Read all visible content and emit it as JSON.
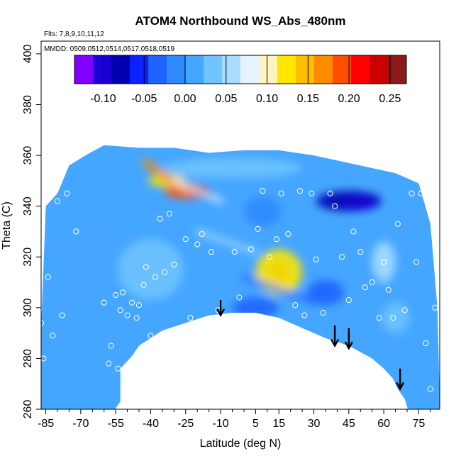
{
  "chart_data": {
    "type": "heatmap",
    "title": "ATOM4 Northbound WS_Abs_480nm",
    "flights_note": "Flts: 7,8,9,10,11,12",
    "mmdd_note": "MMDD: 0509,0512,0514,0517,0518,0519",
    "xlabel": "Latitude (deg N)",
    "ylabel": "Theta (C)",
    "xlim": [
      -87,
      84
    ],
    "ylim": [
      260,
      405
    ],
    "x_ticks": [
      -85,
      -70,
      -55,
      -40,
      -25,
      -10,
      5,
      15,
      30,
      45,
      60,
      75
    ],
    "y_ticks": [
      260,
      280,
      300,
      320,
      340,
      360,
      380,
      400
    ],
    "colorbar": {
      "range": [
        -0.135,
        0.27
      ],
      "ticks": [
        -0.1,
        -0.05,
        0.0,
        0.05,
        0.1,
        0.15,
        0.2,
        0.25
      ],
      "tick_labels": [
        "-0.10",
        "-0.05",
        "0.00",
        "0.05",
        "0.10",
        "0.15",
        "0.20",
        "0.25"
      ],
      "colors": [
        "#7f00ff",
        "#1a00d4",
        "#0000b0",
        "#0a22ff",
        "#1e63ff",
        "#2f8aff",
        "#45a6ff",
        "#6fc3ff",
        "#a8dcff",
        "#e6f4ff",
        "#fff3c0",
        "#ffe600",
        "#ffbf00",
        "#ff8c00",
        "#ff4d00",
        "#ff0000",
        "#cc0000",
        "#8b1a1a"
      ]
    },
    "background_value": 0.005,
    "data_envelope": [
      [
        -87,
        260
      ],
      [
        -87,
        292
      ],
      [
        -85,
        340
      ],
      [
        -80,
        345
      ],
      [
        -75,
        356
      ],
      [
        -68,
        360
      ],
      [
        -60,
        364
      ],
      [
        -45,
        363
      ],
      [
        -30,
        363
      ],
      [
        -15,
        361
      ],
      [
        0,
        362
      ],
      [
        15,
        362
      ],
      [
        30,
        360
      ],
      [
        50,
        356
      ],
      [
        65,
        353
      ],
      [
        75,
        349
      ],
      [
        80,
        333
      ],
      [
        83,
        300
      ],
      [
        84,
        265
      ],
      [
        84,
        260
      ]
    ],
    "ground": [
      [
        -57,
        258
      ],
      [
        -53,
        263
      ],
      [
        -53,
        276
      ],
      [
        -48,
        281
      ],
      [
        -45,
        285
      ],
      [
        -40,
        288
      ],
      [
        -35,
        291
      ],
      [
        -25,
        294
      ],
      [
        -15,
        297
      ],
      [
        -5,
        298
      ],
      [
        5,
        298
      ],
      [
        15,
        296
      ],
      [
        25,
        292
      ],
      [
        35,
        288
      ],
      [
        45,
        285
      ],
      [
        55,
        280
      ],
      [
        60,
        276
      ],
      [
        64,
        272
      ],
      [
        66,
        268
      ],
      [
        69,
        264
      ],
      [
        71,
        258
      ]
    ],
    "anomalies": [
      {
        "lat": -25,
        "theta": 346,
        "value": 0.2,
        "rx": 9,
        "ry": 3
      },
      {
        "lat": -18,
        "theta": 345.5,
        "value": 0.23,
        "rx": 4,
        "ry": 1.8
      },
      {
        "lat": -33,
        "theta": 350,
        "value": 0.12,
        "rx": 8,
        "ry": 2.5
      },
      {
        "lat": 15,
        "theta": 314,
        "value": 0.26,
        "rx": 4,
        "ry": 4
      },
      {
        "lat": 15,
        "theta": 314,
        "value": 0.12,
        "rx": 10,
        "ry": 9
      },
      {
        "lat": 45,
        "theta": 342,
        "value": -0.07,
        "rx": 14,
        "ry": 4
      },
      {
        "lat": 50,
        "theta": 341,
        "value": -0.1,
        "rx": 7,
        "ry": 2.5
      },
      {
        "lat": 8,
        "theta": 338,
        "value": -0.02,
        "rx": 8,
        "ry": 6
      },
      {
        "lat": 5,
        "theta": 300,
        "value": -0.04,
        "rx": 10,
        "ry": 4
      },
      {
        "lat": -40,
        "theta": 315,
        "value": 0.04,
        "rx": 14,
        "ry": 12
      },
      {
        "lat": -70,
        "theta": 318,
        "value": 0.02,
        "rx": 10,
        "ry": 16
      },
      {
        "lat": 60,
        "theta": 318,
        "value": 0.05,
        "rx": 5,
        "ry": 8
      },
      {
        "lat": 35,
        "theta": 306,
        "value": -0.03,
        "rx": 8,
        "ry": 5
      },
      {
        "lat": 65,
        "theta": 296,
        "value": 0.03,
        "rx": 6,
        "ry": 6
      },
      {
        "lat": -5,
        "theta": 355,
        "value": 0.03,
        "rx": 30,
        "ry": 4
      },
      {
        "lat": 25,
        "theta": 282,
        "value": 0.04,
        "rx": 10,
        "ry": 4
      }
    ],
    "streaks": [
      {
        "from": [
          -42,
          357
        ],
        "to": [
          -25,
          346
        ],
        "value": 0.18,
        "width": 3
      },
      {
        "from": [
          -30,
          350
        ],
        "to": [
          -10,
          342
        ],
        "value": 0.08,
        "width": 2
      },
      {
        "from": [
          -20,
          330
        ],
        "to": [
          5,
          322
        ],
        "value": 0.05,
        "width": 2
      },
      {
        "from": [
          0,
          312
        ],
        "to": [
          30,
          302
        ],
        "value": -0.03,
        "width": 2
      }
    ],
    "samples": [
      [
        -87,
        294
      ],
      [
        -86,
        280
      ],
      [
        -84,
        312
      ],
      [
        -82,
        289
      ],
      [
        -80,
        342
      ],
      [
        -78,
        297
      ],
      [
        -76,
        345
      ],
      [
        -72,
        330
      ],
      [
        -60,
        302
      ],
      [
        -58,
        278
      ],
      [
        -57,
        285
      ],
      [
        -55,
        305
      ],
      [
        -54,
        276
      ],
      [
        -53,
        299
      ],
      [
        -52,
        306
      ],
      [
        -50,
        297
      ],
      [
        -48,
        302
      ],
      [
        -46,
        296
      ],
      [
        -45,
        301
      ],
      [
        -43,
        309
      ],
      [
        -42,
        316
      ],
      [
        -40,
        289
      ],
      [
        -38,
        312
      ],
      [
        -36,
        335
      ],
      [
        -34,
        314
      ],
      [
        -32,
        337
      ],
      [
        -30,
        317
      ],
      [
        -28,
        292
      ],
      [
        -25,
        327
      ],
      [
        -23,
        296
      ],
      [
        -20,
        325
      ],
      [
        -18,
        329
      ],
      [
        -14,
        322
      ],
      [
        -11,
        299
      ],
      [
        -8,
        289
      ],
      [
        -4,
        322
      ],
      [
        -2,
        304
      ],
      [
        3,
        323
      ],
      [
        6,
        331
      ],
      [
        8,
        346
      ],
      [
        11,
        320
      ],
      [
        14,
        327
      ],
      [
        16,
        345
      ],
      [
        19,
        329
      ],
      [
        22,
        301
      ],
      [
        24,
        346
      ],
      [
        26,
        297
      ],
      [
        29,
        345
      ],
      [
        31,
        319
      ],
      [
        34,
        298
      ],
      [
        37,
        345
      ],
      [
        39,
        340
      ],
      [
        42,
        320
      ],
      [
        45,
        303
      ],
      [
        47,
        330
      ],
      [
        50,
        322
      ],
      [
        52,
        308
      ],
      [
        55,
        310
      ],
      [
        58,
        296
      ],
      [
        60,
        318
      ],
      [
        62,
        307
      ],
      [
        64,
        296
      ],
      [
        66,
        333
      ],
      [
        69,
        299
      ],
      [
        72,
        345
      ],
      [
        74,
        318
      ],
      [
        76,
        345
      ],
      [
        78,
        286
      ],
      [
        80,
        268
      ],
      [
        82,
        300
      ]
    ],
    "arrows": [
      {
        "lat": -10,
        "theta_top": 303,
        "theta_tip": 297
      },
      {
        "lat": 39,
        "theta_top": 293,
        "theta_tip": 285
      },
      {
        "lat": 45,
        "theta_top": 292,
        "theta_tip": 284
      },
      {
        "lat": 67,
        "theta_top": 276,
        "theta_tip": 268
      }
    ]
  }
}
